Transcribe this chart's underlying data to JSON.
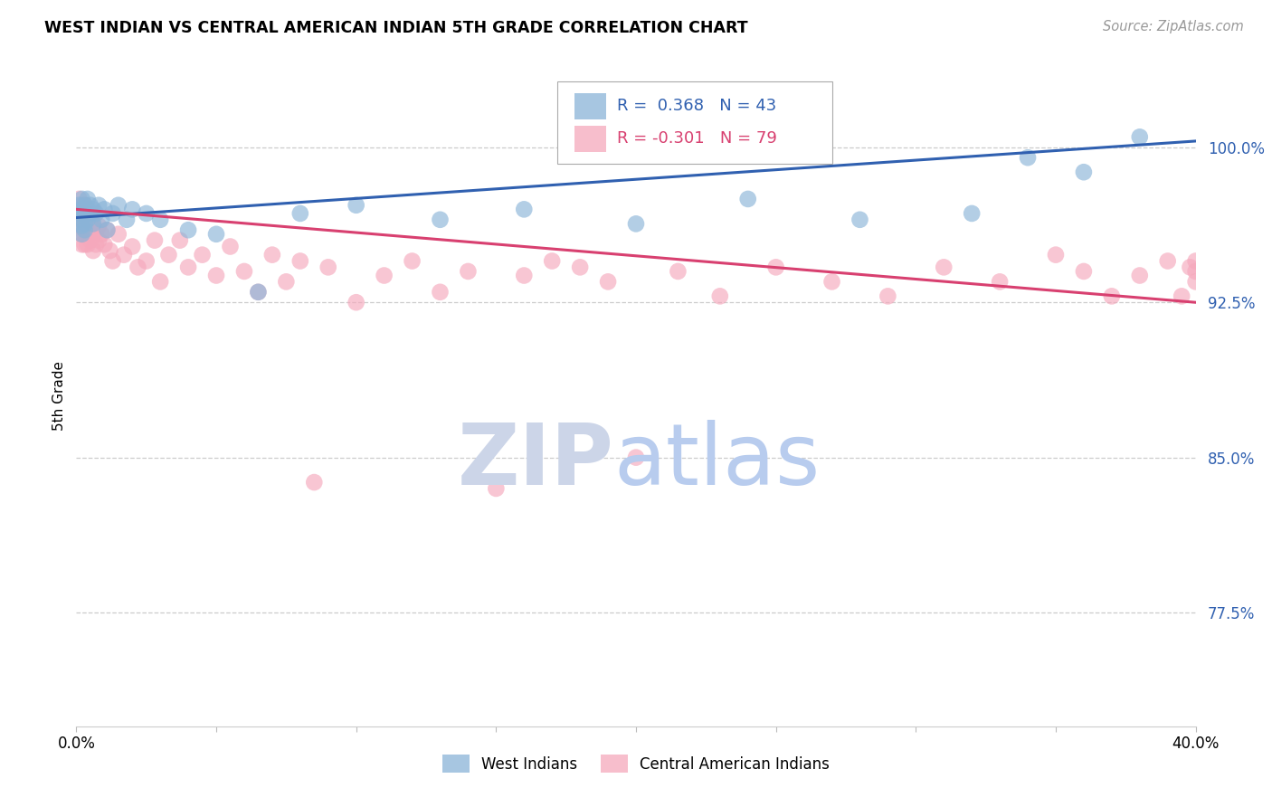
{
  "title": "WEST INDIAN VS CENTRAL AMERICAN INDIAN 5TH GRADE CORRELATION CHART",
  "source": "Source: ZipAtlas.com",
  "ylabel": "5th Grade",
  "yticks": [
    0.775,
    0.85,
    0.925,
    1.0
  ],
  "ytick_labels": [
    "77.5%",
    "85.0%",
    "92.5%",
    "100.0%"
  ],
  "xmin": 0.0,
  "xmax": 0.4,
  "ymin": 0.72,
  "ymax": 1.04,
  "blue_color": "#8ab4d8",
  "pink_color": "#f5a8bc",
  "blue_line_color": "#3060b0",
  "pink_line_color": "#d84070",
  "legend_entry_blue": "West Indians",
  "legend_entry_pink": "Central American Indians",
  "watermark_color_ZIP": "#ccd5e8",
  "watermark_color_atlas": "#b8ccee",
  "blue_x": [
    0.001,
    0.001,
    0.001,
    0.002,
    0.002,
    0.002,
    0.002,
    0.003,
    0.003,
    0.003,
    0.003,
    0.004,
    0.004,
    0.004,
    0.005,
    0.005,
    0.006,
    0.006,
    0.007,
    0.008,
    0.009,
    0.01,
    0.011,
    0.013,
    0.015,
    0.018,
    0.02,
    0.025,
    0.03,
    0.04,
    0.05,
    0.065,
    0.08,
    0.1,
    0.13,
    0.16,
    0.2,
    0.24,
    0.28,
    0.32,
    0.34,
    0.36,
    0.38
  ],
  "blue_y": [
    0.968,
    0.972,
    0.965,
    0.975,
    0.97,
    0.962,
    0.958,
    0.972,
    0.968,
    0.963,
    0.96,
    0.97,
    0.965,
    0.975,
    0.968,
    0.972,
    0.97,
    0.963,
    0.968,
    0.972,
    0.965,
    0.97,
    0.96,
    0.968,
    0.972,
    0.965,
    0.97,
    0.968,
    0.965,
    0.96,
    0.958,
    0.93,
    0.968,
    0.972,
    0.965,
    0.97,
    0.963,
    0.975,
    0.965,
    0.968,
    0.995,
    0.988,
    1.005
  ],
  "pink_x": [
    0.001,
    0.001,
    0.001,
    0.002,
    0.002,
    0.002,
    0.002,
    0.003,
    0.003,
    0.003,
    0.003,
    0.003,
    0.004,
    0.004,
    0.004,
    0.004,
    0.005,
    0.005,
    0.005,
    0.006,
    0.006,
    0.006,
    0.007,
    0.007,
    0.008,
    0.008,
    0.009,
    0.01,
    0.011,
    0.012,
    0.013,
    0.015,
    0.017,
    0.02,
    0.022,
    0.025,
    0.028,
    0.03,
    0.033,
    0.037,
    0.04,
    0.045,
    0.05,
    0.055,
    0.06,
    0.065,
    0.07,
    0.075,
    0.08,
    0.085,
    0.09,
    0.1,
    0.11,
    0.12,
    0.13,
    0.14,
    0.15,
    0.16,
    0.17,
    0.18,
    0.19,
    0.2,
    0.215,
    0.23,
    0.25,
    0.27,
    0.29,
    0.31,
    0.33,
    0.35,
    0.36,
    0.37,
    0.38,
    0.39,
    0.395,
    0.398,
    0.4,
    0.4,
    0.4
  ],
  "pink_y": [
    0.975,
    0.968,
    0.962,
    0.972,
    0.965,
    0.958,
    0.953,
    0.972,
    0.968,
    0.962,
    0.958,
    0.953,
    0.968,
    0.962,
    0.958,
    0.953,
    0.965,
    0.96,
    0.955,
    0.962,
    0.958,
    0.95,
    0.96,
    0.953,
    0.962,
    0.955,
    0.958,
    0.953,
    0.96,
    0.95,
    0.945,
    0.958,
    0.948,
    0.952,
    0.942,
    0.945,
    0.955,
    0.935,
    0.948,
    0.955,
    0.942,
    0.948,
    0.938,
    0.952,
    0.94,
    0.93,
    0.948,
    0.935,
    0.945,
    0.838,
    0.942,
    0.925,
    0.938,
    0.945,
    0.93,
    0.94,
    0.835,
    0.938,
    0.945,
    0.942,
    0.935,
    0.85,
    0.94,
    0.928,
    0.942,
    0.935,
    0.928,
    0.942,
    0.935,
    0.948,
    0.94,
    0.928,
    0.938,
    0.945,
    0.928,
    0.942,
    0.935,
    0.94,
    0.945
  ]
}
